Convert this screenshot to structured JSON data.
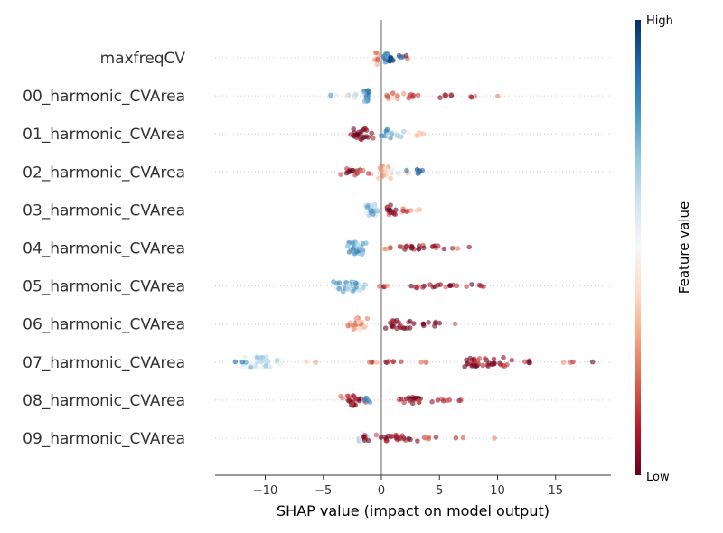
{
  "chart_data": {
    "type": "scatter",
    "subtype": "shap-beeswarm",
    "title": "",
    "xlabel": "SHAP value (impact on model output)",
    "ylabel": "",
    "xlim": [
      -14.3,
      19.8
    ],
    "xticks": [
      -10,
      -5,
      0,
      5,
      10,
      15
    ],
    "xtick_labels": [
      "−10",
      "−5",
      "0",
      "5",
      "10",
      "15"
    ],
    "features": [
      "maxfreqCV",
      "00_harmonic_CVArea",
      "01_harmonic_CVArea",
      "02_harmonic_CVArea",
      "03_harmonic_CVArea",
      "04_harmonic_CVArea",
      "05_harmonic_CVArea",
      "06_harmonic_CVArea",
      "07_harmonic_CVArea",
      "08_harmonic_CVArea",
      "09_harmonic_CVArea"
    ],
    "colorbar": {
      "title": "Feature value",
      "high_label": "High",
      "low_label": "Low",
      "colors": [
        "#67001f",
        "#b2182b",
        "#d6604d",
        "#f4a582",
        "#fddbc7",
        "#f7f7f7",
        "#d1e5f0",
        "#92c5de",
        "#4393c3",
        "#2166ac",
        "#053061"
      ]
    },
    "clusters": [
      [
        {
          "x": -0.4,
          "n": 12,
          "s": 0.15,
          "h": 0.62,
          "fv": 0.3
        },
        {
          "x": 0.4,
          "n": 22,
          "s": 0.2,
          "h": 0.42,
          "fv": 0.88
        },
        {
          "x": 0.9,
          "n": 8,
          "s": 0.12,
          "h": 0.3,
          "fv": 0.95
        },
        {
          "x": 1.6,
          "n": 4,
          "s": 0.2,
          "h": 0.25,
          "fv": 0.85
        },
        {
          "x": 2.0,
          "n": 2,
          "s": 0.15,
          "h": 0.2,
          "fv": 0.15
        }
      ],
      [
        {
          "x": -1.2,
          "n": 24,
          "s": 0.12,
          "h": 0.5,
          "fv": 0.82
        },
        {
          "x": -2.5,
          "n": 6,
          "s": 0.4,
          "h": 0.3,
          "fv": 0.55
        },
        {
          "x": -4.2,
          "n": 3,
          "s": 0.3,
          "h": 0.15,
          "fv": 0.7
        },
        {
          "x": 0.7,
          "n": 10,
          "s": 0.3,
          "h": 0.3,
          "fv": 0.3
        },
        {
          "x": 2.5,
          "n": 8,
          "s": 0.5,
          "h": 0.25,
          "fv": 0.2
        },
        {
          "x": 5.5,
          "n": 6,
          "s": 0.4,
          "h": 0.2,
          "fv": 0.1
        },
        {
          "x": 7.5,
          "n": 3,
          "s": 0.5,
          "h": 0.15,
          "fv": 0.15
        },
        {
          "x": 10.0,
          "n": 1,
          "s": 0.05,
          "h": 0.05,
          "fv": 0.2
        }
      ],
      [
        {
          "x": -1.6,
          "n": 26,
          "s": 0.5,
          "h": 0.55,
          "fv": 0.05
        },
        {
          "x": 0.3,
          "n": 10,
          "s": 0.3,
          "h": 0.4,
          "fv": 0.8
        },
        {
          "x": 1.4,
          "n": 10,
          "s": 0.5,
          "h": 0.3,
          "fv": 0.6
        },
        {
          "x": 2.7,
          "n": 5,
          "s": 0.4,
          "h": 0.2,
          "fv": 0.4
        },
        {
          "x": 3.6,
          "n": 1,
          "s": 0.05,
          "h": 0.05,
          "fv": 0.4
        }
      ],
      [
        {
          "x": -2.6,
          "n": 14,
          "s": 0.5,
          "h": 0.3,
          "fv": 0.05
        },
        {
          "x": -1.2,
          "n": 4,
          "s": 0.3,
          "h": 0.2,
          "fv": 0.2
        },
        {
          "x": 0.3,
          "n": 18,
          "s": 0.25,
          "h": 0.6,
          "fv": 0.3
        },
        {
          "x": 1.5,
          "n": 8,
          "s": 0.6,
          "h": 0.25,
          "fv": 0.45
        },
        {
          "x": 3.3,
          "n": 8,
          "s": 0.6,
          "h": 0.25,
          "fv": 0.9
        },
        {
          "x": 4.8,
          "n": 1,
          "s": 0.05,
          "h": 0.05,
          "fv": 0.5
        }
      ],
      [
        {
          "x": -0.8,
          "n": 22,
          "s": 0.35,
          "h": 0.5,
          "fv": 0.7
        },
        {
          "x": 0.6,
          "n": 14,
          "s": 0.3,
          "h": 0.45,
          "fv": 0.05
        },
        {
          "x": 2.0,
          "n": 6,
          "s": 0.4,
          "h": 0.25,
          "fv": 0.2
        },
        {
          "x": 3.4,
          "n": 2,
          "s": 0.3,
          "h": 0.05,
          "fv": 0.25
        }
      ],
      [
        {
          "x": -2.2,
          "n": 34,
          "s": 0.4,
          "h": 0.55,
          "fv": 0.75
        },
        {
          "x": 0.6,
          "n": 4,
          "s": 0.2,
          "h": 0.1,
          "fv": 0.15
        },
        {
          "x": 2.8,
          "n": 16,
          "s": 0.7,
          "h": 0.25,
          "fv": 0.05
        },
        {
          "x": 4.8,
          "n": 6,
          "s": 0.4,
          "h": 0.2,
          "fv": 0.05
        },
        {
          "x": 7.0,
          "n": 3,
          "s": 0.6,
          "h": 0.1,
          "fv": 0.15
        }
      ],
      [
        {
          "x": -2.8,
          "n": 32,
          "s": 0.6,
          "h": 0.5,
          "fv": 0.7
        },
        {
          "x": 0.5,
          "n": 4,
          "s": 0.4,
          "h": 0.1,
          "fv": 0.15
        },
        {
          "x": 4.0,
          "n": 12,
          "s": 0.8,
          "h": 0.2,
          "fv": 0.05
        },
        {
          "x": 6.5,
          "n": 8,
          "s": 0.6,
          "h": 0.15,
          "fv": 0.05
        },
        {
          "x": 8.5,
          "n": 3,
          "s": 0.4,
          "h": 0.1,
          "fv": 0.1
        }
      ],
      [
        {
          "x": -2.0,
          "n": 30,
          "s": 0.4,
          "h": 0.55,
          "fv": 0.3
        },
        {
          "x": 1.5,
          "n": 22,
          "s": 0.7,
          "h": 0.4,
          "fv": 0.02
        },
        {
          "x": 4.0,
          "n": 8,
          "s": 0.6,
          "h": 0.2,
          "fv": 0.05
        },
        {
          "x": 6.4,
          "n": 1,
          "s": 0.05,
          "h": 0.05,
          "fv": 0.15
        }
      ],
      [
        {
          "x": -10.2,
          "n": 40,
          "s": 0.9,
          "h": 0.55,
          "fv": 0.6
        },
        {
          "x": -12.5,
          "n": 3,
          "s": 0.4,
          "h": 0.1,
          "fv": 0.85
        },
        {
          "x": -6.0,
          "n": 2,
          "s": 0.5,
          "h": 0.05,
          "fv": 0.25
        },
        {
          "x": -0.8,
          "n": 4,
          "s": 0.4,
          "h": 0.1,
          "fv": 0.2
        },
        {
          "x": 1.5,
          "n": 6,
          "s": 0.8,
          "h": 0.1,
          "fv": 0.15
        },
        {
          "x": 4.5,
          "n": 3,
          "s": 0.8,
          "h": 0.05,
          "fv": 0.15
        },
        {
          "x": 9.0,
          "n": 40,
          "s": 1.1,
          "h": 0.45,
          "fv": 0.03
        },
        {
          "x": 12.6,
          "n": 4,
          "s": 0.4,
          "h": 0.15,
          "fv": 0.05
        },
        {
          "x": 16.0,
          "n": 3,
          "s": 0.3,
          "h": 0.1,
          "fv": 0.15
        },
        {
          "x": 18.2,
          "n": 1,
          "s": 0.05,
          "h": 0.05,
          "fv": 0.1
        }
      ],
      [
        {
          "x": -2.4,
          "n": 26,
          "s": 0.5,
          "h": 0.5,
          "fv": 0.1
        },
        {
          "x": -1.0,
          "n": 6,
          "s": 0.3,
          "h": 0.3,
          "fv": 0.85
        },
        {
          "x": 1.7,
          "n": 3,
          "s": 0.4,
          "h": 0.1,
          "fv": 0.2
        },
        {
          "x": 2.9,
          "n": 18,
          "s": 0.5,
          "h": 0.3,
          "fv": 0.03
        },
        {
          "x": 5.0,
          "n": 8,
          "s": 0.8,
          "h": 0.15,
          "fv": 0.1
        },
        {
          "x": 6.8,
          "n": 1,
          "s": 0.05,
          "h": 0.05,
          "fv": 0.15
        }
      ],
      [
        {
          "x": -1.6,
          "n": 16,
          "s": 0.4,
          "h": 0.45,
          "fv": 0.55
        },
        {
          "x": -1.3,
          "n": 6,
          "s": 0.3,
          "h": 0.3,
          "fv": 0.1
        },
        {
          "x": 1.6,
          "n": 22,
          "s": 0.8,
          "h": 0.3,
          "fv": 0.03
        },
        {
          "x": 4.5,
          "n": 5,
          "s": 0.6,
          "h": 0.1,
          "fv": 0.15
        },
        {
          "x": 7.0,
          "n": 2,
          "s": 0.3,
          "h": 0.05,
          "fv": 0.05
        },
        {
          "x": 9.7,
          "n": 1,
          "s": 0.05,
          "h": 0.05,
          "fv": 0.15
        }
      ]
    ]
  }
}
